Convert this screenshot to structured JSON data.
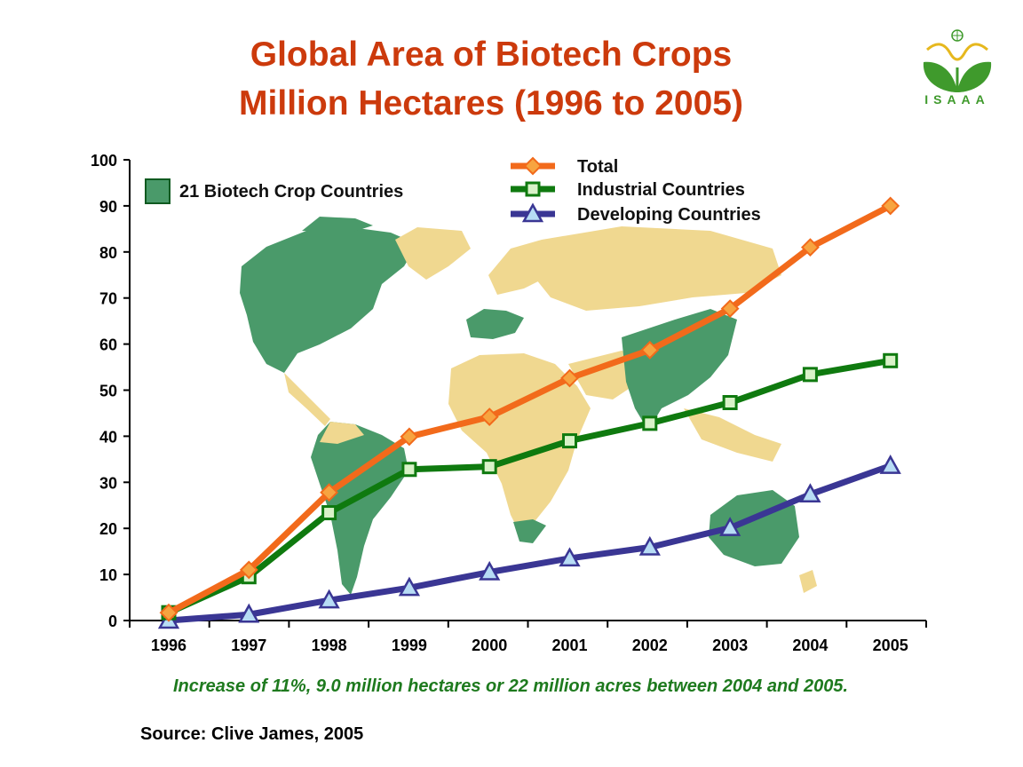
{
  "title_line1": "Global Area of Biotech Crops",
  "title_line2": "Million Hectares (1996 to 2005)",
  "logo_text": "ISAAA",
  "map_legend": "21 Biotech Crop Countries",
  "note": "Increase of 11%, 9.0 million hectares or 22 million acres between 2004 and 2005.",
  "source": "Source: Clive James, 2005",
  "colors": {
    "title": "#cc3a0c",
    "total": "#f26a1b",
    "industrial": "#0f7a0f",
    "developing": "#3a3694",
    "map_biotech": "#4a9a6a",
    "map_other": "#f0d890",
    "note": "#1e7a1e"
  },
  "chart_data": {
    "type": "line",
    "title": "Global Area of Biotech Crops Million Hectares (1996 to 2005)",
    "categories": [
      "1996",
      "1997",
      "1998",
      "1999",
      "2000",
      "2001",
      "2002",
      "2003",
      "2004",
      "2005"
    ],
    "y_ticks": [
      "0",
      "10",
      "20",
      "30",
      "40",
      "50",
      "60",
      "70",
      "80",
      "90",
      "100"
    ],
    "ylim": [
      0,
      100
    ],
    "grid": false,
    "legend_position": "top-right",
    "series": [
      {
        "name": "Total",
        "marker": "diamond",
        "values": [
          1.7,
          11.0,
          27.8,
          39.9,
          44.2,
          52.6,
          58.7,
          67.7,
          81.0,
          90.0
        ]
      },
      {
        "name": "Industrial Countries",
        "marker": "square",
        "values": [
          1.7,
          9.5,
          23.4,
          32.8,
          33.4,
          39.0,
          42.8,
          47.3,
          53.4,
          56.4
        ]
      },
      {
        "name": "Developing Countries",
        "marker": "triangle",
        "values": [
          0.0,
          1.3,
          4.4,
          7.1,
          10.5,
          13.5,
          15.9,
          20.1,
          27.4,
          33.6
        ]
      }
    ]
  }
}
